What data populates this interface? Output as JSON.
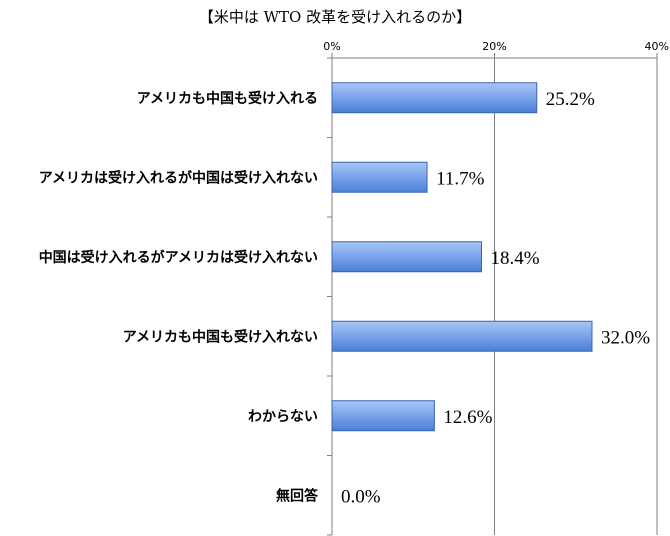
{
  "chart_data": {
    "type": "bar",
    "orientation": "horizontal",
    "title": "【米中は WTO 改革を受け入れるのか】",
    "categories": [
      "アメリカも中国も受け入れる",
      "アメリカは受け入れるが中国は受け入れない",
      "中国は受け入れるがアメリカは受け入れない",
      "アメリカも中国も受け入れない",
      "わからない",
      "無回答"
    ],
    "values": [
      25.2,
      11.7,
      18.4,
      32.0,
      12.6,
      0.0
    ],
    "data_labels": [
      "25.2%",
      "11.7%",
      "18.4%",
      "32.0%",
      "12.6%",
      "0.0%"
    ],
    "xlim": [
      0,
      40
    ],
    "x_ticks": [
      0,
      20,
      40
    ],
    "x_tick_labels": [
      "0%",
      "20%",
      "40%"
    ],
    "axis_position": "top",
    "grid": true,
    "colors": {
      "bar_fill_top": "#a9c6f4",
      "bar_fill_bottom": "#4a7fd8",
      "bar_stroke": "#3a65b0",
      "axis": "#7f7f7f"
    }
  }
}
